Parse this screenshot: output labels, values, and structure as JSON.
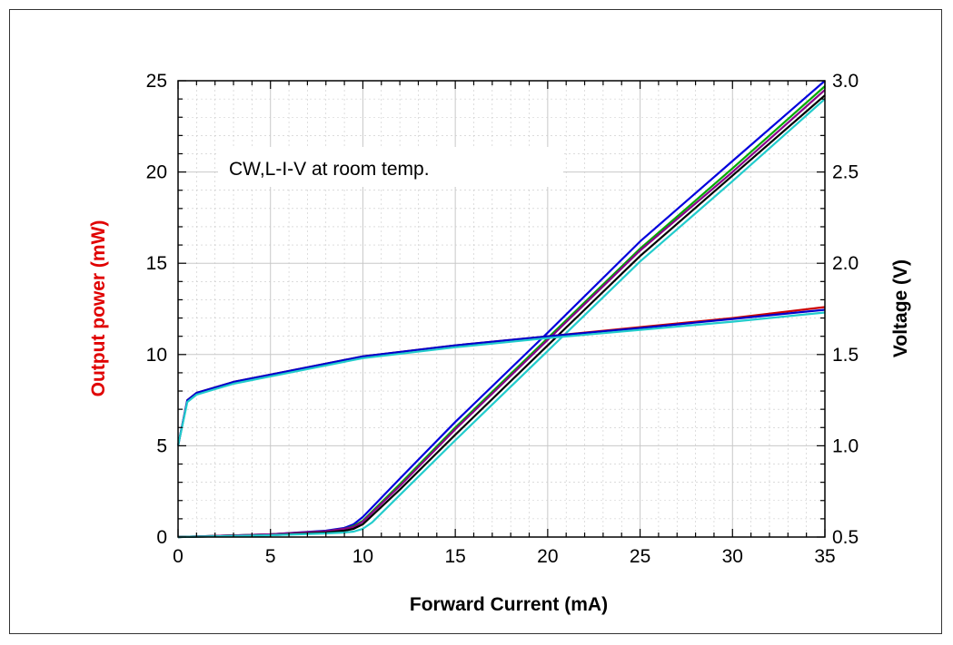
{
  "chart_data": {
    "type": "line",
    "annotation": "CW,L-I-V at room temp.",
    "xlabel": "Forward Current (mA)",
    "ylabel_left": "Output power (mW)",
    "ylabel_right": "Voltage (V)",
    "xlim": [
      0,
      35
    ],
    "ylim_left": [
      0,
      25
    ],
    "ylim_right": [
      0.5,
      3.0
    ],
    "x_ticks": [
      "0",
      "5",
      "10",
      "15",
      "20",
      "25",
      "30",
      "35"
    ],
    "y_left_ticks": [
      "0",
      "5",
      "10",
      "15",
      "20",
      "25"
    ],
    "y_right_ticks": [
      "0.5",
      "1.0",
      "1.5",
      "2.0",
      "2.5",
      "3.0"
    ],
    "grid": true,
    "legend": "none",
    "colors": {
      "ylabel_left": "#e00000",
      "ylabel_right": "#000000",
      "grid": "#c8c8c8"
    },
    "series": [
      {
        "color": "#0000dd",
        "axis": "left",
        "x": [
          0,
          5,
          8,
          9,
          9.5,
          10,
          12,
          15,
          20,
          25,
          30,
          35
        ],
        "y": [
          0,
          0.15,
          0.35,
          0.5,
          0.7,
          1.1,
          3.2,
          6.3,
          11.2,
          16.2,
          20.6,
          25.0
        ]
      },
      {
        "color": "#00aa00",
        "axis": "left",
        "x": [
          0,
          5,
          8,
          9,
          9.5,
          10,
          12,
          15,
          20,
          25,
          30,
          35
        ],
        "y": [
          0,
          0.15,
          0.32,
          0.45,
          0.6,
          0.9,
          2.9,
          6.0,
          10.9,
          15.8,
          20.2,
          24.7
        ]
      },
      {
        "color": "#880088",
        "axis": "left",
        "x": [
          0,
          5,
          8,
          9,
          9.5,
          10,
          12,
          15,
          20,
          25,
          30,
          35
        ],
        "y": [
          0,
          0.15,
          0.32,
          0.45,
          0.55,
          0.85,
          2.8,
          5.9,
          10.8,
          15.7,
          20.0,
          24.5
        ]
      },
      {
        "color": "#000000",
        "axis": "left",
        "x": [
          0,
          5,
          8,
          9,
          9.5,
          10,
          12,
          15,
          20,
          25,
          30,
          35
        ],
        "y": [
          0,
          0.1,
          0.25,
          0.35,
          0.45,
          0.7,
          2.6,
          5.6,
          10.5,
          15.4,
          19.8,
          24.2
        ]
      },
      {
        "color": "#22cccc",
        "axis": "left",
        "x": [
          0,
          5,
          8,
          9,
          9.5,
          10,
          10.5,
          12,
          15,
          20,
          25,
          30,
          35
        ],
        "y": [
          0,
          0.1,
          0.2,
          0.25,
          0.3,
          0.45,
          0.8,
          2.3,
          5.3,
          10.2,
          15.1,
          19.5,
          24.0
        ]
      },
      {
        "color": "#cc0000",
        "axis": "right",
        "x": [
          0,
          0.5,
          1,
          2,
          3,
          5,
          10,
          15,
          20,
          25,
          30,
          35
        ],
        "y": [
          1.0,
          1.25,
          1.29,
          1.32,
          1.35,
          1.39,
          1.49,
          1.55,
          1.6,
          1.65,
          1.7,
          1.76
        ]
      },
      {
        "color": "#0000cc",
        "axis": "right",
        "x": [
          0,
          0.5,
          1,
          2,
          3,
          5,
          10,
          15,
          20,
          25,
          30,
          35
        ],
        "y": [
          1.0,
          1.25,
          1.29,
          1.32,
          1.35,
          1.39,
          1.49,
          1.55,
          1.6,
          1.645,
          1.695,
          1.745
        ]
      },
      {
        "color": "#22cccc",
        "axis": "right",
        "x": [
          0,
          0.5,
          1,
          2,
          3,
          5,
          10,
          15,
          20,
          25,
          30,
          35
        ],
        "y": [
          1.0,
          1.24,
          1.28,
          1.31,
          1.34,
          1.38,
          1.48,
          1.54,
          1.59,
          1.635,
          1.68,
          1.73
        ]
      }
    ]
  }
}
